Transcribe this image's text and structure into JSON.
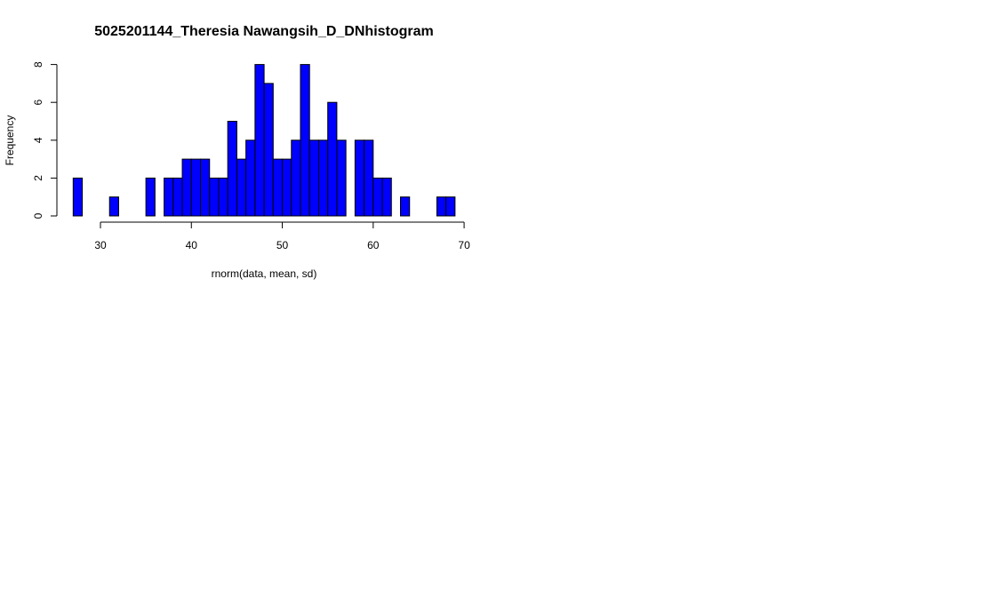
{
  "chart_data": {
    "type": "bar",
    "title": "5025201144_Theresia Nawangsih_D_DNhistogram",
    "xlabel": "rnorm(data, mean, sd)",
    "ylabel": "Frequency",
    "bin_start": 27,
    "bin_width": 1,
    "counts": [
      2,
      0,
      0,
      0,
      1,
      0,
      0,
      0,
      2,
      0,
      2,
      2,
      3,
      3,
      3,
      2,
      2,
      5,
      3,
      4,
      8,
      7,
      3,
      3,
      4,
      8,
      4,
      4,
      6,
      4,
      0,
      4,
      4,
      2,
      2,
      0,
      1,
      0,
      0,
      0,
      1,
      1
    ],
    "xticks": [
      30,
      40,
      50,
      60,
      70
    ],
    "yticks": [
      0,
      2,
      4,
      6,
      8
    ],
    "xlim": [
      26.5,
      70
    ],
    "ylim": [
      0,
      8
    ],
    "bar_color": "#0000ff",
    "grid": false
  }
}
